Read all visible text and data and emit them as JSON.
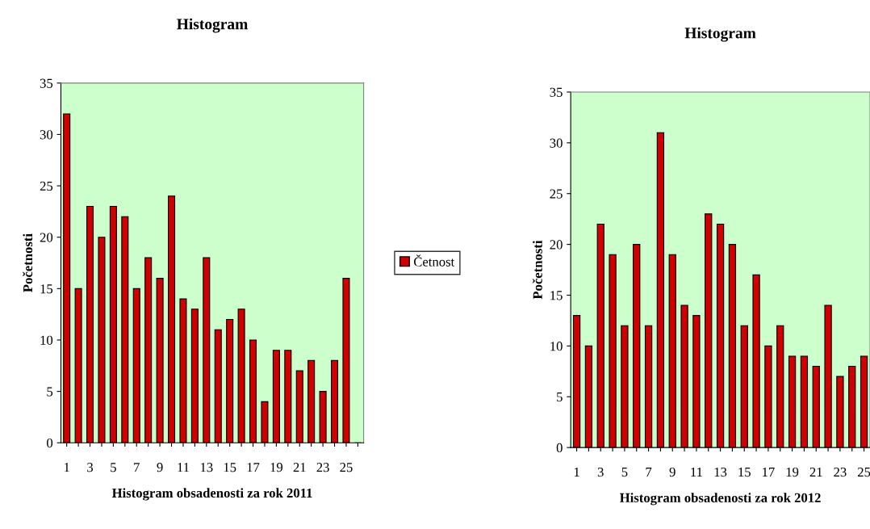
{
  "chart_data": [
    {
      "type": "bar",
      "title": "Histogram",
      "xlabel": "Histogram obsadenosti za rok 2011",
      "ylabel": "Početnosti",
      "categories": [
        "1",
        null,
        "3",
        null,
        "5",
        null,
        "7",
        null,
        "9",
        null,
        "11",
        null,
        "13",
        null,
        "15",
        null,
        "17",
        null,
        "19",
        null,
        "21",
        null,
        "23",
        null,
        "25",
        null
      ],
      "series": [
        {
          "name": "Četnost",
          "color": "#d00000",
          "values": [
            32,
            15,
            23,
            20,
            23,
            22,
            15,
            18,
            16,
            24,
            14,
            13,
            18,
            11,
            12,
            13,
            10,
            4,
            9,
            9,
            7,
            8,
            5,
            8,
            16,
            null
          ]
        }
      ],
      "ylim": [
        0,
        35
      ],
      "yticks": [
        0,
        5,
        10,
        15,
        20,
        25,
        30,
        35
      ],
      "legend": "right",
      "grid": false
    },
    {
      "type": "bar",
      "title": "Histogram",
      "xlabel": "Histogram obsadenosti za rok 2012",
      "ylabel": "Početnosti",
      "categories": [
        "1",
        null,
        "3",
        null,
        "5",
        null,
        "7",
        null,
        "9",
        null,
        "11",
        null,
        "13",
        null,
        "15",
        null,
        "17",
        null,
        "19",
        null,
        "21",
        null,
        "23",
        null,
        "25"
      ],
      "series": [
        {
          "color": "#d00000",
          "values": [
            13,
            10,
            22,
            19,
            12,
            20,
            12,
            31,
            19,
            14,
            13,
            23,
            22,
            20,
            12,
            17,
            10,
            12,
            9,
            9,
            8,
            14,
            7,
            8,
            9
          ]
        }
      ],
      "ylim": [
        0,
        35
      ],
      "yticks": [
        0,
        5,
        10,
        15,
        20,
        25,
        30,
        35
      ],
      "grid": false
    }
  ]
}
